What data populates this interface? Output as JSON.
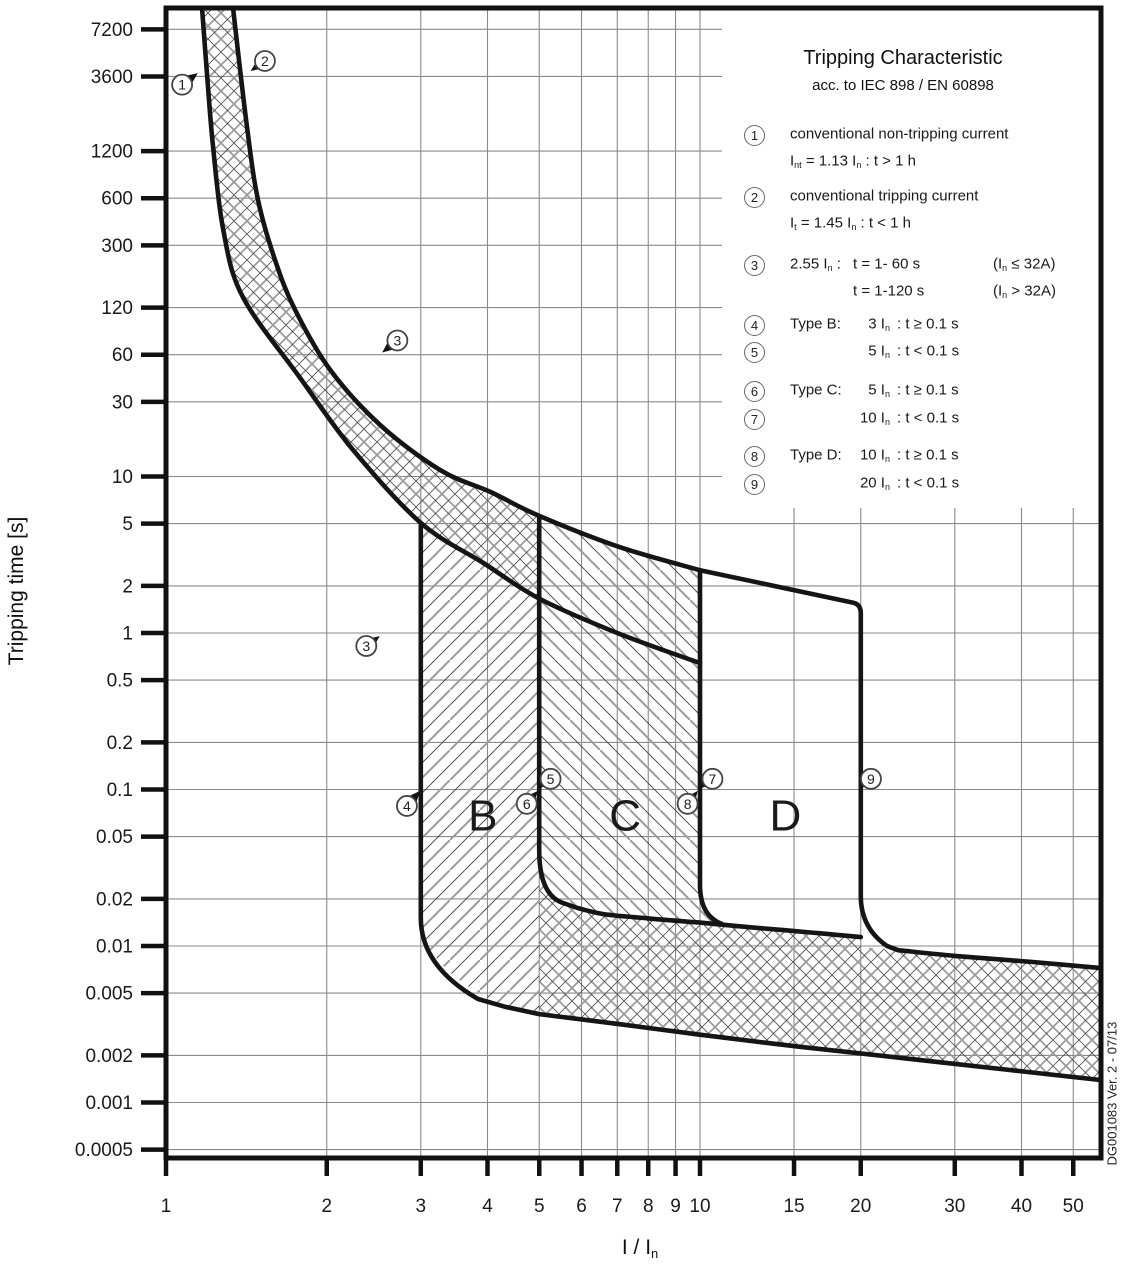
{
  "page": {
    "background": "#ffffff"
  },
  "stamp": "DG001083 Ver. 2 - 07/13",
  "chart_data": {
    "type": "line",
    "title": "Tripping Characteristic",
    "subtitle": "acc. to IEC 898 / EN 60898",
    "xlabel": "I / I~n~",
    "ylabel": "Tripping time [s]",
    "log_x": true,
    "log_y": true,
    "grid": true,
    "x_range": [
      1,
      56.4
    ],
    "y_range": [
      0.00042,
      9900
    ],
    "x_ticks": [
      [
        1,
        "1"
      ],
      [
        2,
        "2"
      ],
      [
        3,
        "3"
      ],
      [
        4,
        "4"
      ],
      [
        5,
        "5"
      ],
      [
        6,
        "6"
      ],
      [
        7,
        "7"
      ],
      [
        8,
        "8"
      ],
      [
        9,
        "9"
      ],
      [
        10,
        "10"
      ],
      [
        15,
        "15"
      ],
      [
        20,
        "20"
      ],
      [
        30,
        "30"
      ],
      [
        40,
        "40"
      ],
      [
        50,
        "50"
      ]
    ],
    "y_ticks": [
      [
        7200,
        "7200"
      ],
      [
        3600,
        "3600"
      ],
      [
        1200,
        "1200"
      ],
      [
        600,
        "600"
      ],
      [
        300,
        "300"
      ],
      [
        120,
        "120"
      ],
      [
        60,
        "60"
      ],
      [
        30,
        "30"
      ],
      [
        10,
        "10"
      ],
      [
        5,
        "5"
      ],
      [
        2,
        "2"
      ],
      [
        1,
        "1"
      ],
      [
        0.5,
        "0.5"
      ],
      [
        0.2,
        "0.2"
      ],
      [
        0.1,
        "0.1"
      ],
      [
        0.05,
        "0.05"
      ],
      [
        0.02,
        "0.02"
      ],
      [
        0.01,
        "0.01"
      ],
      [
        0.005,
        "0.005"
      ],
      [
        0.002,
        "0.002"
      ],
      [
        0.001,
        "0.001"
      ],
      [
        0.0005,
        "0.0005"
      ]
    ],
    "colors": {
      "curve": "#151515",
      "grid": "#8a8a8a",
      "hatch_gray": "#9a9a9a",
      "hatch_dark": "#444444",
      "text": "#1a1a1a"
    },
    "curves": {
      "thermal_lower_1_13In": [
        [
          1.168,
          9900
        ],
        [
          1.193,
          3800
        ],
        [
          1.225,
          1275
        ],
        [
          1.28,
          376
        ],
        [
          1.393,
          140
        ],
        [
          1.78,
          43
        ],
        [
          2.24,
          14.8
        ],
        [
          3.0,
          5.05
        ],
        [
          3.93,
          2.8
        ],
        [
          5.0,
          1.66
        ],
        [
          7.0,
          1.0
        ],
        [
          10.0,
          0.642
        ]
      ],
      "thermal_upper_1_45In": [
        [
          1.335,
          9900
        ],
        [
          1.418,
          1710
        ],
        [
          1.487,
          585
        ],
        [
          1.6,
          242
        ],
        [
          1.745,
          116
        ],
        [
          2.03,
          48
        ],
        [
          2.52,
          21.3
        ],
        [
          3.26,
          11.0
        ],
        [
          4.05,
          7.97
        ],
        [
          5.0,
          5.6
        ],
        [
          7.07,
          3.54
        ],
        [
          10.0,
          2.52
        ]
      ],
      "d_top_end": [
        20,
        1.53
      ],
      "band_top_5_to_20": [
        [
          5.9,
          0.0175
        ],
        [
          6.6,
          0.016
        ],
        [
          8.0,
          0.015
        ],
        [
          10.0,
          0.0141
        ],
        [
          12.0,
          0.0133
        ],
        [
          14.5,
          0.0126
        ],
        [
          17.0,
          0.012
        ],
        [
          20.0,
          0.0114
        ]
      ],
      "band_top_after_20": [
        [
          23.5,
          0.0094
        ],
        [
          30.0,
          0.00865
        ],
        [
          42.0,
          0.0079
        ],
        [
          56.4,
          0.00722
        ]
      ],
      "band_bottom": [
        [
          4.3,
          0.0041
        ],
        [
          5.0,
          0.00367
        ],
        [
          7.1,
          0.00316
        ],
        [
          10.0,
          0.00271
        ],
        [
          15.4,
          0.00227
        ],
        [
          23.7,
          0.00193
        ],
        [
          36.4,
          0.00164
        ],
        [
          56.4,
          0.00139
        ]
      ],
      "vertical_3In_t_range": [
        5.05,
        0.0151
      ],
      "vertical_5In_t_range": [
        5.6,
        0.0413
      ],
      "vertical_10In_t_range": [
        2.52,
        0.0228
      ],
      "vertical_20In_t_range": [
        1.53,
        0.0197
      ]
    },
    "regions": [
      {
        "label": "B",
        "at": [
          3.92,
          0.068
        ]
      },
      {
        "label": "C",
        "at": [
          7.24,
          0.068
        ]
      },
      {
        "label": "D",
        "at": [
          14.45,
          0.068
        ]
      }
    ],
    "markers": [
      {
        "n": "1",
        "circle": [
          1.072,
          3190
        ],
        "tip": [
          1.147,
          3780
        ]
      },
      {
        "n": "2",
        "circle": [
          1.532,
          4520
        ],
        "tip": [
          1.44,
          3900
        ]
      },
      {
        "n": "3",
        "circle": [
          2.712,
          74
        ],
        "tip": [
          2.54,
          62
        ]
      },
      {
        "n": "3",
        "circle": [
          2.372,
          0.826
        ],
        "tip": [
          2.513,
          0.956
        ]
      },
      {
        "n": "4",
        "circle": [
          2.826,
          0.0785
        ],
        "tip": [
          2.99,
          0.098
        ]
      },
      {
        "n": "5",
        "circle": [
          5.25,
          0.117
        ],
        "tip": [
          4.99,
          0.102
        ]
      },
      {
        "n": "6",
        "circle": [
          4.737,
          0.081
        ],
        "tip": [
          4.97,
          0.098
        ]
      },
      {
        "n": "7",
        "circle": [
          10.55,
          0.117
        ],
        "tip": [
          9.95,
          0.102
        ]
      },
      {
        "n": "8",
        "circle": [
          9.48,
          0.081
        ],
        "tip": [
          9.9,
          0.098
        ]
      },
      {
        "n": "9",
        "circle": [
          20.9,
          0.117
        ],
        "tip": [
          19.95,
          0.102
        ]
      }
    ]
  },
  "legend": {
    "title": "Tripping Characteristic",
    "subtitle": "acc. to IEC 898 / EN 60898",
    "rows": [
      {
        "num": "1",
        "kind": "sent",
        "text": "conventional non-tripping current"
      },
      {
        "kind": "formula",
        "text": "I~nt~  = 1.13 I~n~ :  t > 1 h"
      },
      {
        "num": "2",
        "kind": "sent",
        "text": "conventional tripping current"
      },
      {
        "kind": "formula",
        "text": "I~t~  = 1.45 I~n~ :  t < 1 h"
      },
      {
        "num": "3",
        "kind": "spec",
        "lead": "2.55 I~n~ :",
        "time": "t = 1- 60 s",
        "cond": "(I~n~ ≤ 32A)"
      },
      {
        "kind": "spec",
        "lead": "",
        "time": "t = 1-120 s",
        "cond": "(I~n~ > 32A)"
      },
      {
        "num": "4",
        "kind": "type",
        "type": "Type B:",
        "value": "3 I~n~",
        "cond": ": t ≥ 0.1 s"
      },
      {
        "num": "5",
        "kind": "type",
        "type": "",
        "value": "5 I~n~",
        "cond": ": t < 0.1 s"
      },
      {
        "num": "6",
        "kind": "type",
        "type": "Type C:",
        "value": "5 I~n~",
        "cond": ": t ≥ 0.1 s"
      },
      {
        "num": "7",
        "kind": "type",
        "type": "",
        "value": "10 I~n~",
        "cond": ": t < 0.1 s"
      },
      {
        "num": "8",
        "kind": "type",
        "type": "Type D:",
        "value": "10 I~n~",
        "cond": ": t ≥ 0.1 s"
      },
      {
        "num": "9",
        "kind": "type",
        "type": "",
        "value": "20 I~n~",
        "cond": ": t < 0.1 s"
      }
    ]
  }
}
